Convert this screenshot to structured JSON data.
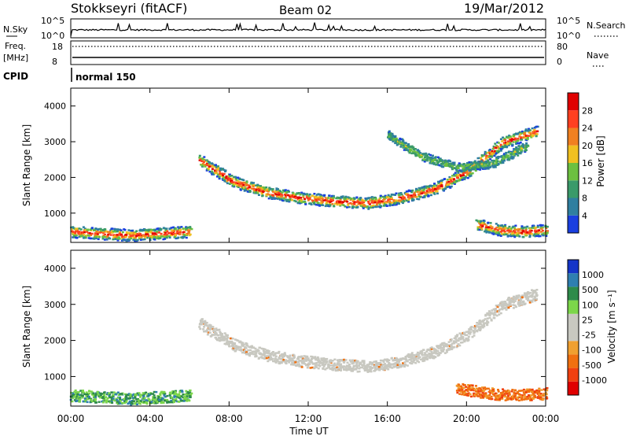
{
  "header": {
    "radar": "Stokkseyri (fitACF)",
    "beam": "Beam 02",
    "date": "19/Mar/2012"
  },
  "noise_panel": {
    "left_label": "N.Sky",
    "left_ticks": [
      "10^5",
      "10^0"
    ],
    "right_ticks": [
      "10^5",
      "10^0"
    ],
    "right_label": "N.Search"
  },
  "freq_panel": {
    "left_label_1": "Freq.",
    "left_label_2": "[MHz]",
    "left_ticks": [
      "18",
      "8"
    ],
    "right_ticks": [
      "80",
      "0"
    ],
    "right_label": "Nave"
  },
  "cpid": {
    "label": "CPID",
    "mode": "normal 150"
  },
  "colors": {
    "power_scale": [
      "#1a3fe0",
      "#2f7fa0",
      "#3a9a6a",
      "#6cc040",
      "#f0c020",
      "#f08020",
      "#ff4020",
      "#e00000"
    ],
    "velocity_scale": [
      "#1535c8",
      "#2f7fb0",
      "#2e8b4a",
      "#7cd64a",
      "#c8c8c0",
      "#c8c8c0",
      "#f0a030",
      "#f07010",
      "#f04010",
      "#e00000"
    ]
  },
  "chart_data": [
    {
      "type": "heatmap",
      "panel": "power",
      "ylabel": "Slant Range [km]",
      "yticks": [
        "1000",
        "2000",
        "3000",
        "4000"
      ],
      "ylim": [
        180,
        4500
      ],
      "xlim_hours": [
        0,
        24
      ],
      "colorbar_label": "Power [dB]",
      "colorbar_ticks": [
        "4",
        "8",
        "12",
        "16",
        "20",
        "24",
        "28"
      ],
      "features": [
        {
          "name": "main arc",
          "t_start": 6.5,
          "t_end": 23.5,
          "range_km": [
            2500,
            1900,
            1600,
            1450,
            1350,
            1300,
            1450,
            1700,
            2200,
            3000,
            3300
          ],
          "level": "high"
        },
        {
          "name": "evening echoes",
          "t_start": 0.0,
          "t_end": 6.0,
          "range_km": [
            500,
            450,
            400,
            450,
            500
          ],
          "level": "high"
        },
        {
          "name": "late echoes",
          "t_start": 20.5,
          "t_end": 24.0,
          "range_km": [
            700,
            550,
            500,
            550
          ],
          "level": "high"
        },
        {
          "name": "upper band",
          "t_start": 16.0,
          "t_end": 23.0,
          "range_km": [
            3200,
            2600,
            2300,
            2400,
            2900
          ],
          "level": "low"
        }
      ]
    },
    {
      "type": "heatmap",
      "panel": "velocity",
      "ylabel": "Slant Range [km]",
      "yticks": [
        "1000",
        "2000",
        "3000",
        "4000"
      ],
      "ylim": [
        180,
        4500
      ],
      "xlabel": "Time UT",
      "xticks": [
        "00:00",
        "04:00",
        "08:00",
        "12:00",
        "16:00",
        "20:00",
        "00:00"
      ],
      "xlim_hours": [
        0,
        24
      ],
      "colorbar_label": "Velocity [m s⁻¹]",
      "colorbar_ticks": [
        "1000",
        "500",
        "100",
        "25",
        "-25",
        "-100",
        "-500",
        "-1000"
      ],
      "features": [
        {
          "name": "ground scatter arc",
          "t_start": 6.5,
          "t_end": 23.5,
          "range_km": [
            2500,
            1900,
            1600,
            1450,
            1350,
            1300,
            1450,
            1700,
            2200,
            3000,
            3300
          ],
          "velocity": "near zero"
        },
        {
          "name": "early echoes",
          "t_start": 0.0,
          "t_end": 6.0,
          "range_km": [
            500,
            450,
            400,
            450,
            500
          ],
          "velocity": "positive"
        },
        {
          "name": "late echoes",
          "t_start": 19.5,
          "t_end": 24.0,
          "range_km": [
            700,
            550,
            500,
            550
          ],
          "velocity": "negative"
        }
      ]
    }
  ]
}
